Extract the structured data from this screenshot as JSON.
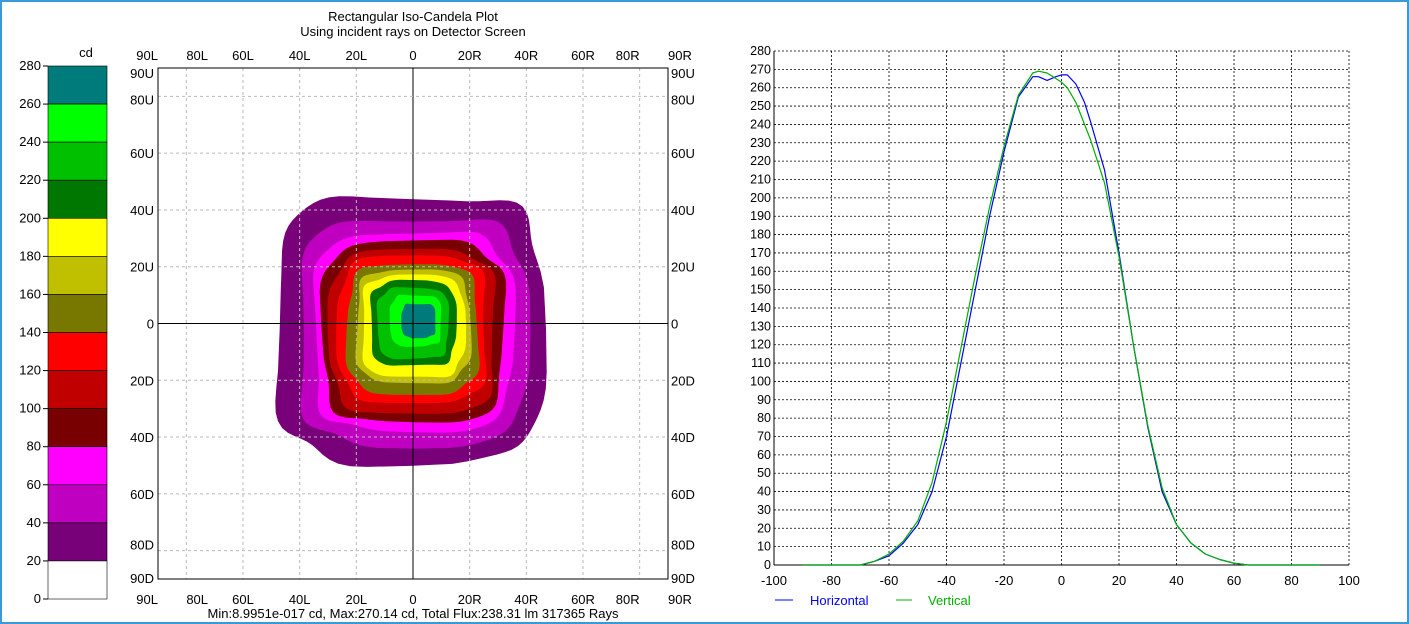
{
  "window": {
    "border_color": "#3a9ad9"
  },
  "legend_bar": {
    "unit": "cd",
    "ticks": [
      "280",
      "260",
      "240",
      "220",
      "200",
      "180",
      "160",
      "140",
      "120",
      "100",
      "80",
      "60",
      "40",
      "20",
      "0"
    ],
    "bands": [
      {
        "from": 260,
        "to": 280,
        "color": "#007b7b"
      },
      {
        "from": 240,
        "to": 260,
        "color": "#00ff00"
      },
      {
        "from": 220,
        "to": 240,
        "color": "#00c000"
      },
      {
        "from": 200,
        "to": 220,
        "color": "#007800"
      },
      {
        "from": 180,
        "to": 200,
        "color": "#ffff00"
      },
      {
        "from": 160,
        "to": 180,
        "color": "#c0c000"
      },
      {
        "from": 140,
        "to": 160,
        "color": "#787800"
      },
      {
        "from": 120,
        "to": 140,
        "color": "#ff0000"
      },
      {
        "from": 100,
        "to": 120,
        "color": "#c00000"
      },
      {
        "from": 80,
        "to": 100,
        "color": "#780000"
      },
      {
        "from": 60,
        "to": 80,
        "color": "#ff00ff"
      },
      {
        "from": 40,
        "to": 60,
        "color": "#c000c0"
      },
      {
        "from": 20,
        "to": 40,
        "color": "#780078"
      },
      {
        "from": 0,
        "to": 20,
        "color": "#ffffff"
      }
    ]
  },
  "chart_data": [
    {
      "type": "heatmap",
      "title": "Rectangular Iso-Candela Plot",
      "subtitle": "Using incident rays on Detector Screen",
      "x_ticks_top": [
        "90L",
        "80L",
        "60L",
        "40L",
        "20L",
        "0",
        "20R",
        "40R",
        "60R",
        "80R",
        "90R"
      ],
      "x_ticks_bottom": [
        "90L",
        "80L",
        "60L",
        "40L",
        "20L",
        "0",
        "20R",
        "40R",
        "60R",
        "80R",
        "90R"
      ],
      "y_ticks": [
        "90U",
        "80U",
        "60U",
        "40U",
        "20U",
        "0",
        "20D",
        "40D",
        "60D",
        "80D",
        "90D"
      ],
      "x_values": [
        -90,
        -80,
        -60,
        -40,
        -20,
        0,
        20,
        40,
        60,
        80,
        90
      ],
      "y_values": [
        90,
        80,
        60,
        40,
        20,
        0,
        -20,
        -40,
        -60,
        -80,
        -90
      ],
      "grid": true,
      "footer": "Min:8.9951e-017 cd, Max:270.14 cd, Total Flux:238.31 lm 317365 Rays",
      "contours": [
        {
          "level": 20,
          "color": "#780078",
          "center": [
            -1,
            -2
          ],
          "rx": 47,
          "ry": 47
        },
        {
          "level": 40,
          "color": "#c000c0",
          "center": [
            0,
            -3
          ],
          "rx": 40,
          "ry": 40
        },
        {
          "level": 60,
          "color": "#ff00ff",
          "center": [
            0,
            -3
          ],
          "rx": 35,
          "ry": 35
        },
        {
          "level": 80,
          "color": "#780000",
          "center": [
            0,
            -3
          ],
          "rx": 32,
          "ry": 32
        },
        {
          "level": 100,
          "color": "#c00000",
          "center": [
            0,
            -3
          ],
          "rx": 29,
          "ry": 29
        },
        {
          "level": 120,
          "color": "#ff0000",
          "center": [
            0,
            -2
          ],
          "rx": 26,
          "ry": 26
        },
        {
          "level": 140,
          "color": "#787800",
          "center": [
            0,
            -2
          ],
          "rx": 23,
          "ry": 23
        },
        {
          "level": 160,
          "color": "#c0c000",
          "center": [
            0,
            -1
          ],
          "rx": 20,
          "ry": 20
        },
        {
          "level": 180,
          "color": "#ffff00",
          "center": [
            0,
            -1
          ],
          "rx": 18,
          "ry": 18
        },
        {
          "level": 200,
          "color": "#007800",
          "center": [
            0,
            0
          ],
          "rx": 15,
          "ry": 15
        },
        {
          "level": 220,
          "color": "#00c000",
          "center": [
            0,
            0
          ],
          "rx": 12.5,
          "ry": 12.5
        },
        {
          "level": 240,
          "color": "#00ff00",
          "center": [
            1,
            1
          ],
          "rx": 9,
          "ry": 9
        },
        {
          "level": 260,
          "color": "#007b7b",
          "center": [
            2,
            1
          ],
          "rx": 6,
          "ry": 6
        }
      ]
    },
    {
      "type": "line",
      "x_ticks": [
        "-100",
        "-80",
        "-60",
        "-40",
        "-20",
        "0",
        "20",
        "40",
        "60",
        "80",
        "100"
      ],
      "y_ticks": [
        "280",
        "270",
        "260",
        "250",
        "240",
        "230",
        "220",
        "210",
        "200",
        "190",
        "180",
        "170",
        "160",
        "150",
        "140",
        "130",
        "120",
        "110",
        "100",
        "90",
        "80",
        "70",
        "60",
        "50",
        "40",
        "30",
        "20",
        "10",
        "0"
      ],
      "xlim": [
        -100,
        100
      ],
      "ylim": [
        0,
        280
      ],
      "grid": true,
      "legend": "bottom-left",
      "series": [
        {
          "name": "Horizontal",
          "color": "#0000ff",
          "x": [
            -90,
            -70,
            -65,
            -60,
            -55,
            -50,
            -45,
            -40,
            -35,
            -30,
            -25,
            -20,
            -15,
            -10,
            -8,
            -5,
            -2,
            0,
            2,
            5,
            8,
            10,
            15,
            20,
            25,
            30,
            35,
            40,
            45,
            50,
            55,
            60,
            65,
            70,
            90
          ],
          "y": [
            0,
            0,
            2,
            5,
            12,
            22,
            40,
            70,
            110,
            150,
            190,
            225,
            255,
            266,
            266,
            264,
            266,
            267,
            267,
            262,
            252,
            242,
            215,
            170,
            120,
            75,
            40,
            22,
            12,
            6,
            3,
            1,
            0,
            0,
            0
          ]
        },
        {
          "name": "Vertical",
          "color": "#00b000",
          "x": [
            -90,
            -70,
            -65,
            -60,
            -55,
            -50,
            -45,
            -40,
            -35,
            -30,
            -25,
            -20,
            -15,
            -10,
            -8,
            -5,
            -2,
            0,
            2,
            5,
            8,
            10,
            15,
            20,
            25,
            30,
            35,
            40,
            45,
            50,
            55,
            60,
            65,
            70,
            90
          ],
          "y": [
            0,
            0,
            2,
            6,
            13,
            24,
            45,
            78,
            118,
            158,
            195,
            228,
            256,
            268,
            269,
            268,
            265,
            263,
            260,
            252,
            240,
            232,
            208,
            168,
            120,
            76,
            42,
            22,
            12,
            6,
            3,
            1,
            0,
            0,
            0
          ]
        }
      ]
    }
  ]
}
